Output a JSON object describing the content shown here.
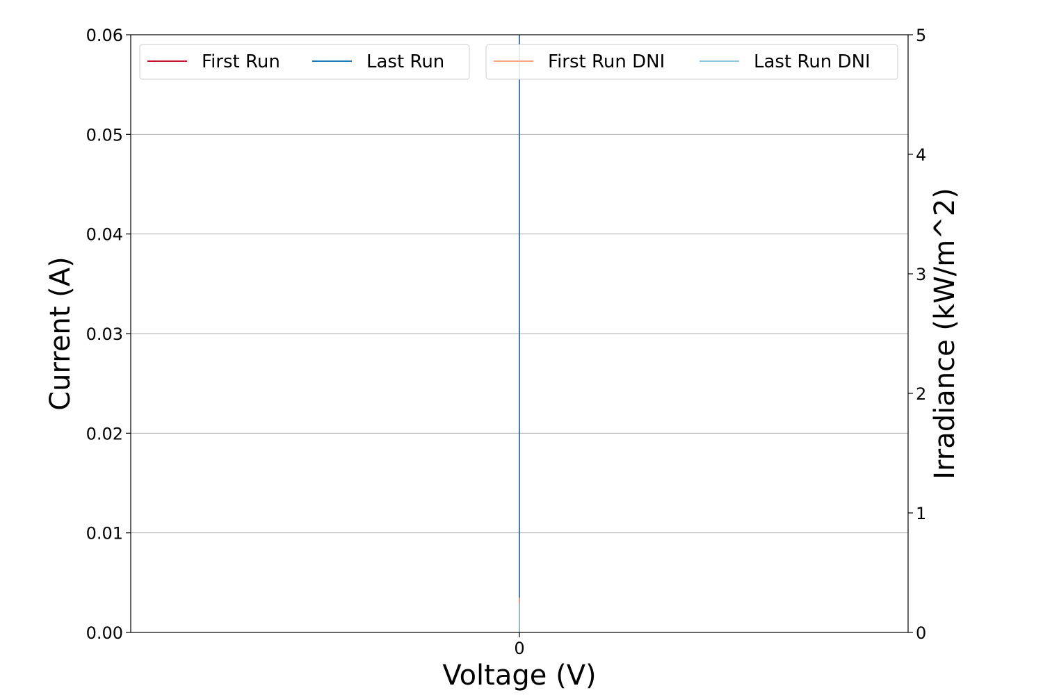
{
  "chart_data": {
    "type": "line",
    "title": "",
    "xlabel": "Voltage (V)",
    "ylabel": "Current (A)",
    "y2label": "Irradiance (kW/m^2)",
    "x_ticks": [
      {
        "value": 0,
        "label": "0"
      }
    ],
    "xlim": [
      -1,
      1
    ],
    "ylim": [
      0,
      0.06
    ],
    "y_ticks": [
      {
        "value": 0.0,
        "label": "0.00"
      },
      {
        "value": 0.01,
        "label": "0.01"
      },
      {
        "value": 0.02,
        "label": "0.02"
      },
      {
        "value": 0.03,
        "label": "0.03"
      },
      {
        "value": 0.04,
        "label": "0.04"
      },
      {
        "value": 0.05,
        "label": "0.05"
      },
      {
        "value": 0.06,
        "label": "0.06"
      }
    ],
    "y2lim": [
      0,
      5
    ],
    "y2_ticks": [
      {
        "value": 0,
        "label": "0"
      },
      {
        "value": 1,
        "label": "1"
      },
      {
        "value": 2,
        "label": "2"
      },
      {
        "value": 3,
        "label": "3"
      },
      {
        "value": 4,
        "label": "4"
      },
      {
        "value": 5,
        "label": "5"
      }
    ],
    "grid": true,
    "series": [
      {
        "name": "First Run",
        "axis": "left",
        "color": "#c0142b",
        "points": [
          [
            0,
            0
          ],
          [
            0,
            0.06
          ]
        ]
      },
      {
        "name": "Last Run",
        "axis": "left",
        "color": "#1f77b4",
        "points": [
          [
            0,
            0
          ],
          [
            0,
            0.06
          ]
        ]
      }
    ],
    "series_right": [
      {
        "name": "First Run DNI",
        "axis": "right",
        "color": "#f4a582",
        "points": [
          [
            0,
            0
          ],
          [
            0,
            0.29
          ]
        ]
      },
      {
        "name": "Last Run DNI",
        "axis": "right",
        "color": "#92c5de",
        "points": [
          [
            0,
            0
          ],
          [
            0,
            0.24
          ]
        ]
      }
    ],
    "legend_left": {
      "placement": "upper-left",
      "entries": [
        "First Run",
        "Last Run"
      ]
    },
    "legend_right": {
      "placement": "upper-right",
      "entries": [
        "First Run DNI",
        "Last Run DNI"
      ]
    }
  }
}
